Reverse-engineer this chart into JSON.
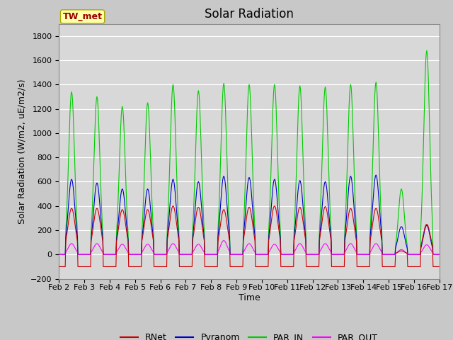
{
  "title": "Solar Radiation",
  "ylabel": "Solar Radiation (W/m2, uE/m2/s)",
  "xlabel": "Time",
  "ylim": [
    -200,
    1900
  ],
  "yticks": [
    -200,
    0,
    200,
    400,
    600,
    800,
    1000,
    1200,
    1400,
    1600,
    1800
  ],
  "station_label": "TW_met",
  "legend": [
    "RNet",
    "Pyranom",
    "PAR_IN",
    "PAR_OUT"
  ],
  "colors": {
    "RNet": "#cc0000",
    "Pyranom": "#0000cc",
    "PAR_IN": "#00cc00",
    "PAR_OUT": "#ff00ff"
  },
  "fig_bg_color": "#c8c8c8",
  "plot_bg_color": "#d8d8d8",
  "grid_color": "#ffffff",
  "station_box_color": "#ffffaa",
  "station_text_color": "#990000",
  "title_fontsize": 12,
  "label_fontsize": 9,
  "tick_fontsize": 8,
  "par_in_peaks": [
    1340,
    1300,
    1220,
    1250,
    1400,
    1350,
    1410,
    1400,
    1400,
    1390,
    1380,
    1400,
    1420,
    540,
    1680
  ],
  "pyranom_peaks": [
    620,
    590,
    540,
    540,
    620,
    600,
    645,
    635,
    620,
    610,
    600,
    645,
    655,
    230,
    240
  ],
  "rnet_peaks": [
    380,
    380,
    370,
    370,
    400,
    390,
    370,
    390,
    400,
    390,
    395,
    380,
    380,
    30,
    250
  ],
  "par_out_peaks": [
    90,
    90,
    85,
    85,
    90,
    85,
    115,
    90,
    85,
    90,
    90,
    90,
    90,
    40,
    80
  ],
  "rnet_night": -100,
  "n_days": 15,
  "n_pts_per_day": 48
}
